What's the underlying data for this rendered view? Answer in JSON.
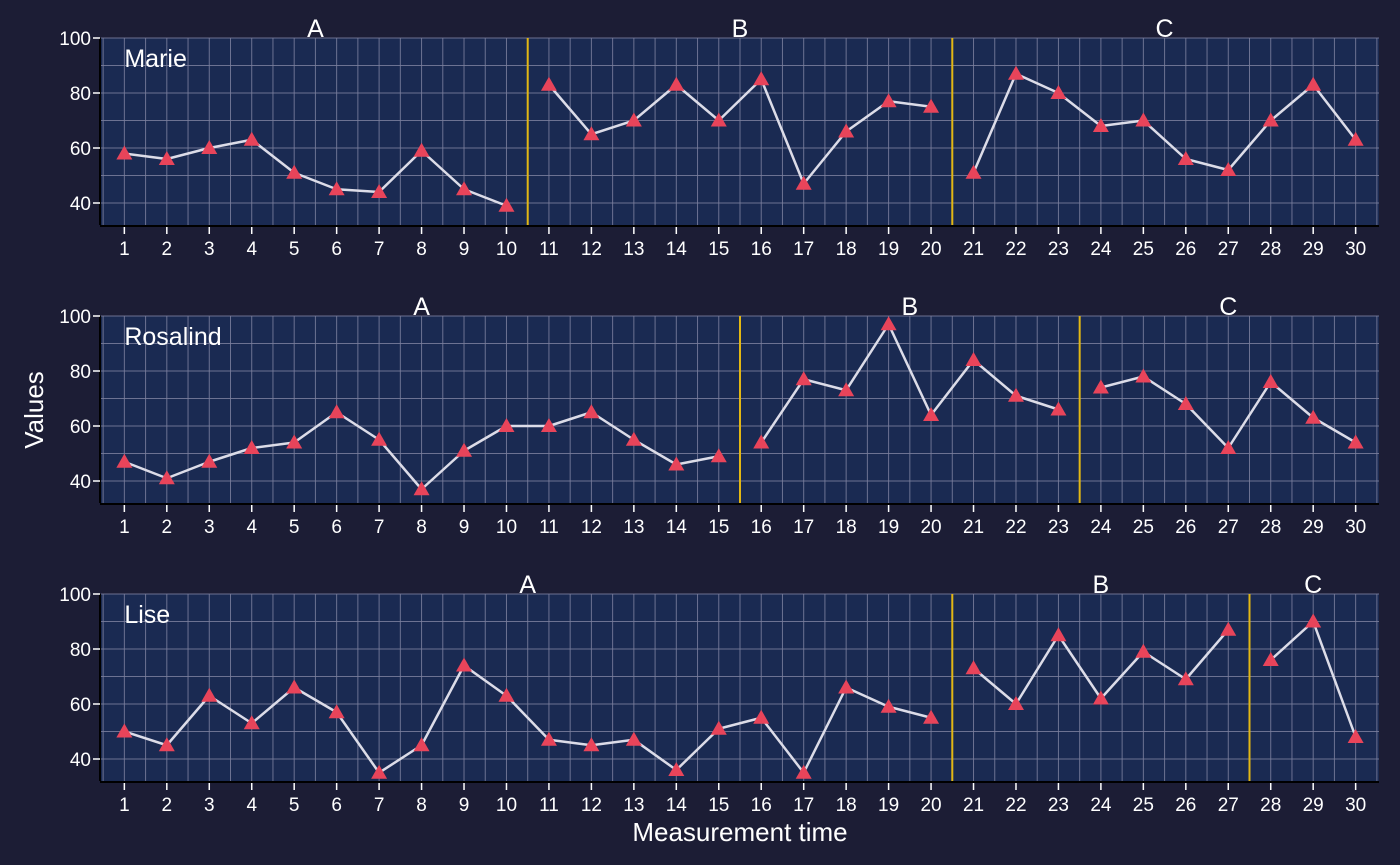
{
  "chart_data": {
    "type": "line",
    "ylabel": "Values",
    "xlabel": "Measurement time",
    "ylim": [
      32,
      100
    ],
    "yticks": [
      40,
      60,
      80,
      100
    ],
    "xlim": [
      0.45,
      30.55
    ],
    "x": [
      1,
      2,
      3,
      4,
      5,
      6,
      7,
      8,
      9,
      10,
      11,
      12,
      13,
      14,
      15,
      16,
      17,
      18,
      19,
      20,
      21,
      22,
      23,
      24,
      25,
      26,
      27,
      28,
      29,
      30
    ],
    "grid": true,
    "colors": {
      "background": "#1c1d35",
      "panel": "#1a2a52",
      "grid": "#7b7f9e",
      "line": "#dcdce8",
      "marker": "#e8445a",
      "phase_line": "#e2b714",
      "text": "#ffffff"
    },
    "panels": [
      {
        "name": "Marie",
        "phases": [
          {
            "label": "A",
            "start": 1,
            "end": 10
          },
          {
            "label": "B",
            "start": 11,
            "end": 20
          },
          {
            "label": "C",
            "start": 21,
            "end": 30
          }
        ],
        "values": [
          58,
          56,
          60,
          63,
          51,
          45,
          44,
          59,
          45,
          39,
          83,
          65,
          70,
          83,
          70,
          85,
          47,
          66,
          77,
          75,
          51,
          87,
          80,
          68,
          70,
          56,
          52,
          70,
          83,
          63
        ]
      },
      {
        "name": "Rosalind",
        "phases": [
          {
            "label": "A",
            "start": 1,
            "end": 15
          },
          {
            "label": "B",
            "start": 16,
            "end": 23
          },
          {
            "label": "C",
            "start": 24,
            "end": 30
          }
        ],
        "values": [
          47,
          41,
          47,
          52,
          54,
          65,
          55,
          37,
          51,
          60,
          60,
          65,
          55,
          46,
          49,
          54,
          77,
          73,
          97,
          64,
          84,
          71,
          66,
          74,
          78,
          68,
          52,
          76,
          63,
          54
        ]
      },
      {
        "name": "Lise",
        "phases": [
          {
            "label": "A",
            "start": 1,
            "end": 20
          },
          {
            "label": "B",
            "start": 21,
            "end": 27
          },
          {
            "label": "C",
            "start": 28,
            "end": 30
          }
        ],
        "values": [
          50,
          45,
          63,
          53,
          66,
          57,
          35,
          45,
          74,
          63,
          47,
          45,
          47,
          36,
          51,
          55,
          35,
          66,
          59,
          55,
          73,
          60,
          85,
          62,
          79,
          69,
          87,
          76,
          90,
          48
        ]
      }
    ]
  }
}
